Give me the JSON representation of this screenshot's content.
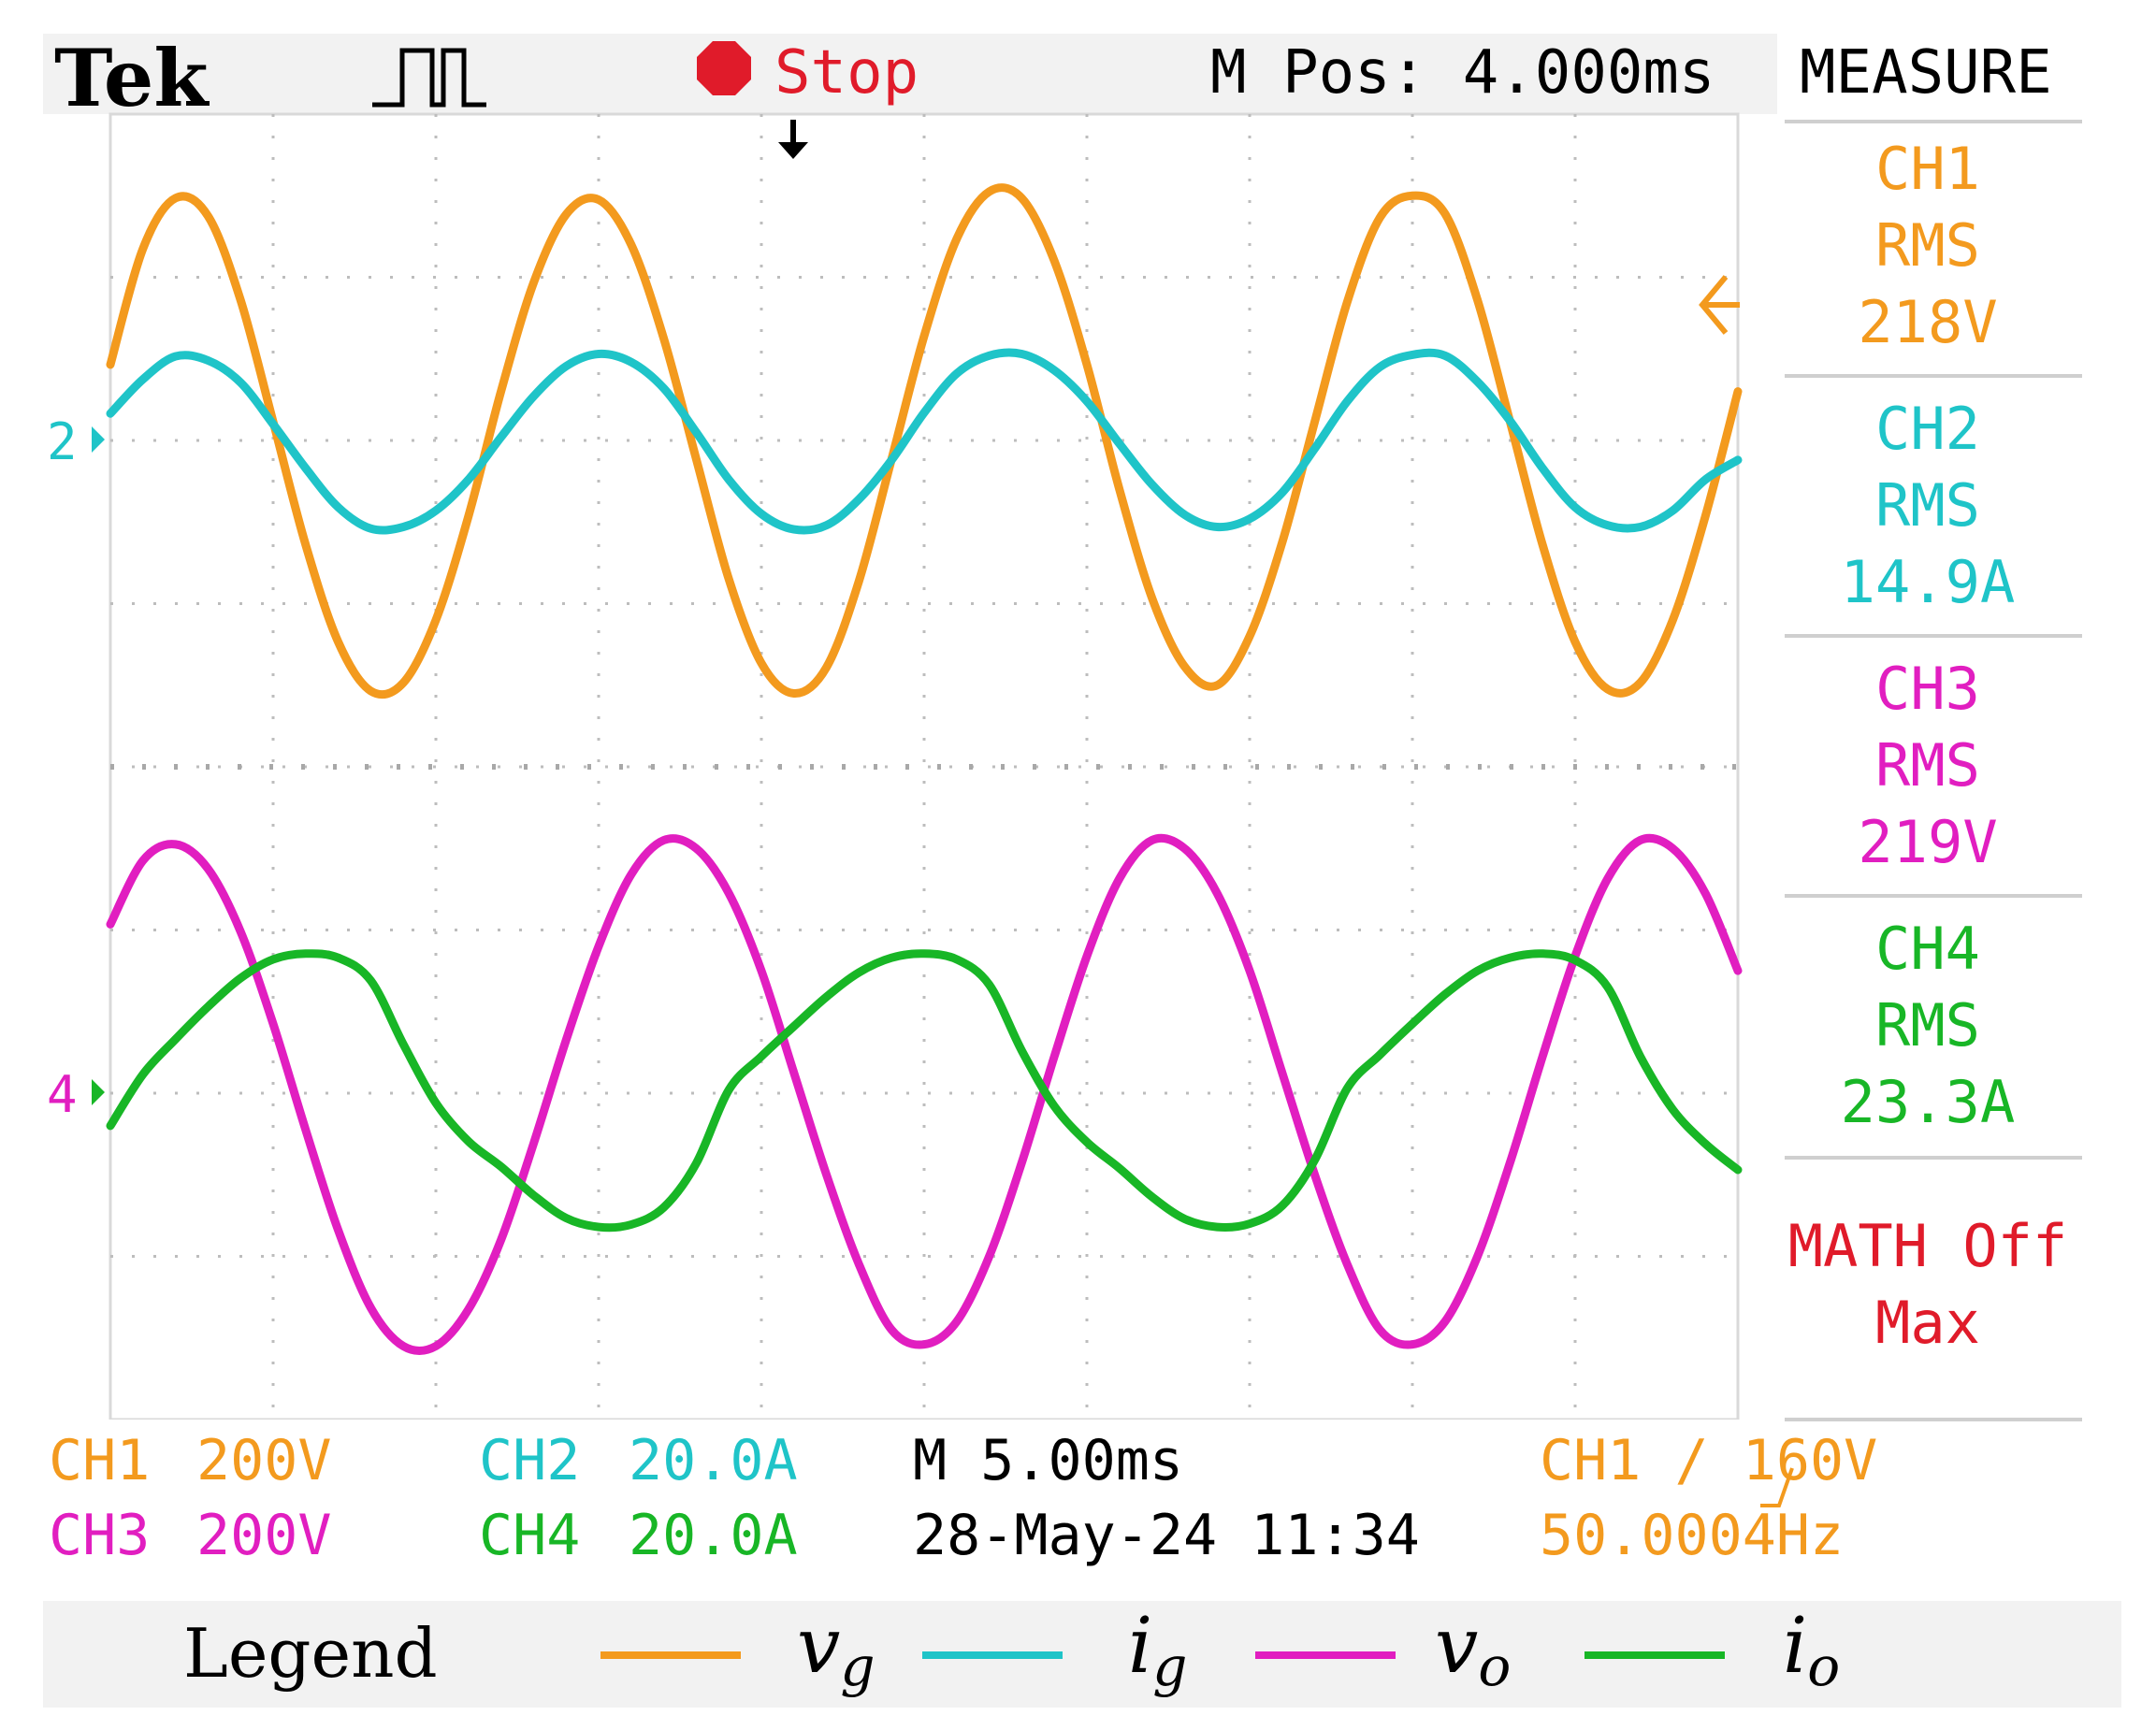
{
  "header": {
    "brand": "Tek",
    "run_state": "Stop",
    "m_pos": "M Pos: 4.000ms",
    "menu_title": "MEASURE"
  },
  "measure": [
    {
      "ch": "CH1",
      "kind": "RMS",
      "value": "218V",
      "color": "#F39A1E"
    },
    {
      "ch": "CH2",
      "kind": "RMS",
      "value": "14.9A",
      "color": "#1FC4C8"
    },
    {
      "ch": "CH3",
      "kind": "RMS",
      "value": "219V",
      "color": "#E11EC0"
    },
    {
      "ch": "CH4",
      "kind": "RMS",
      "value": "23.3A",
      "color": "#18B626"
    },
    {
      "ch": "MATH Off",
      "kind": "Max",
      "value": "",
      "color": "#E01B2A"
    }
  ],
  "footer": {
    "ch1": "CH1",
    "ch1_scale": "200V",
    "ch2": "CH2",
    "ch2_scale": "20.0A",
    "ch3": "CH3",
    "ch3_scale": "200V",
    "ch4": "CH4",
    "ch4_scale": "20.0A",
    "timebase": "M 5.00ms",
    "date": "28-May-24 11:34",
    "trigger": "CH1 ∕ 160V",
    "freq": "50.0004Hz"
  },
  "markers": {
    "ch2": "2",
    "ch34": "4"
  },
  "legend": {
    "title": "Legend",
    "items": [
      {
        "base": "v",
        "sub": "g",
        "color": "#F39A1E"
      },
      {
        "base": "i",
        "sub": "g",
        "color": "#1FC4C8"
      },
      {
        "base": "v",
        "sub": "o",
        "color": "#E11EC0"
      },
      {
        "base": "i",
        "sub": "o",
        "color": "#18B626"
      }
    ]
  },
  "chart_data": {
    "type": "line",
    "x_unit": "ms",
    "x": [
      0,
      1,
      2,
      3,
      4,
      5,
      6,
      7,
      8,
      9,
      10,
      11,
      12,
      13,
      14,
      15,
      16,
      17,
      18,
      19,
      20,
      21,
      22,
      23,
      24,
      25,
      26,
      27,
      28,
      29,
      30,
      31,
      32,
      33,
      34,
      35,
      36,
      37,
      38,
      39,
      40,
      41,
      42,
      43,
      44,
      45,
      46,
      47,
      48,
      49,
      50
    ],
    "xlim": [
      0,
      50
    ],
    "grid": true,
    "series": [
      {
        "name": "CH1",
        "color": "#F39A1E",
        "values": [
          93,
          235,
          297,
          275,
          172,
          23,
          -128,
          -247,
          -307,
          -297,
          -220,
          -93,
          60,
          193,
          277,
          295,
          240,
          125,
          -23,
          -170,
          -273,
          -310,
          -278,
          -172,
          -23,
          128,
          247,
          305,
          297,
          220,
          93,
          -60,
          -193,
          -277,
          -300,
          -240,
          -125,
          23,
          170,
          273,
          300,
          278,
          172,
          23,
          -128,
          -247,
          -305,
          -297,
          -220,
          -93,
          60
        ]
      },
      {
        "name": "CH2",
        "color": "#1FC4C8",
        "values": [
          3.3,
          7.5,
          10.3,
          9.8,
          7.1,
          2.0,
          -3.4,
          -8.2,
          -10.8,
          -10.6,
          -8.6,
          -4.8,
          0.4,
          5.4,
          9.1,
          10.6,
          9.6,
          6.4,
          1.0,
          -4.8,
          -9.0,
          -10.9,
          -10.4,
          -7.2,
          -2.4,
          3.4,
          8.2,
          10.4,
          10.6,
          8.6,
          4.8,
          -0.4,
          -5.4,
          -9.1,
          -10.6,
          -9.6,
          -6.4,
          -1.0,
          4.8,
          9.0,
          10.5,
          10.4,
          7.2,
          2.4,
          -3.4,
          -8.2,
          -10.4,
          -10.6,
          -8.6,
          -4.8,
          -2.4
        ]
      },
      {
        "name": "CH3",
        "color": "#E11EC0",
        "values": [
          207,
          285,
          305,
          275,
          198,
          85,
          -45,
          -168,
          -263,
          -310,
          -310,
          -265,
          -180,
          -62,
          65,
          180,
          268,
          310,
          300,
          245,
          150,
          25,
          -100,
          -210,
          -290,
          -308,
          -280,
          -200,
          -85,
          45,
          168,
          263,
          310,
          300,
          245,
          150,
          25,
          -100,
          -210,
          -290,
          -308,
          -280,
          -200,
          -85,
          45,
          168,
          263,
          310,
          300,
          245,
          150
        ]
      },
      {
        "name": "CH4",
        "color": "#18B626",
        "values": [
          -4.0,
          2.3,
          6.6,
          10.6,
          14.1,
          16.4,
          17.1,
          16.6,
          13.8,
          6.0,
          -1.2,
          -5.9,
          -9.0,
          -12.5,
          -15.3,
          -16.4,
          -16.1,
          -14.0,
          -8.6,
          0.4,
          4.5,
          8.2,
          11.8,
          14.8,
          16.6,
          17.1,
          16.4,
          13.3,
          5.2,
          -1.6,
          -6.0,
          -9.2,
          -12.7,
          -15.4,
          -16.4,
          -16.0,
          -13.8,
          -8.2,
          0.6,
          4.7,
          8.5,
          12.1,
          15.0,
          16.6,
          17.1,
          16.3,
          13.0,
          4.5,
          -2.0,
          -6.2,
          -9.4
        ]
      }
    ]
  }
}
